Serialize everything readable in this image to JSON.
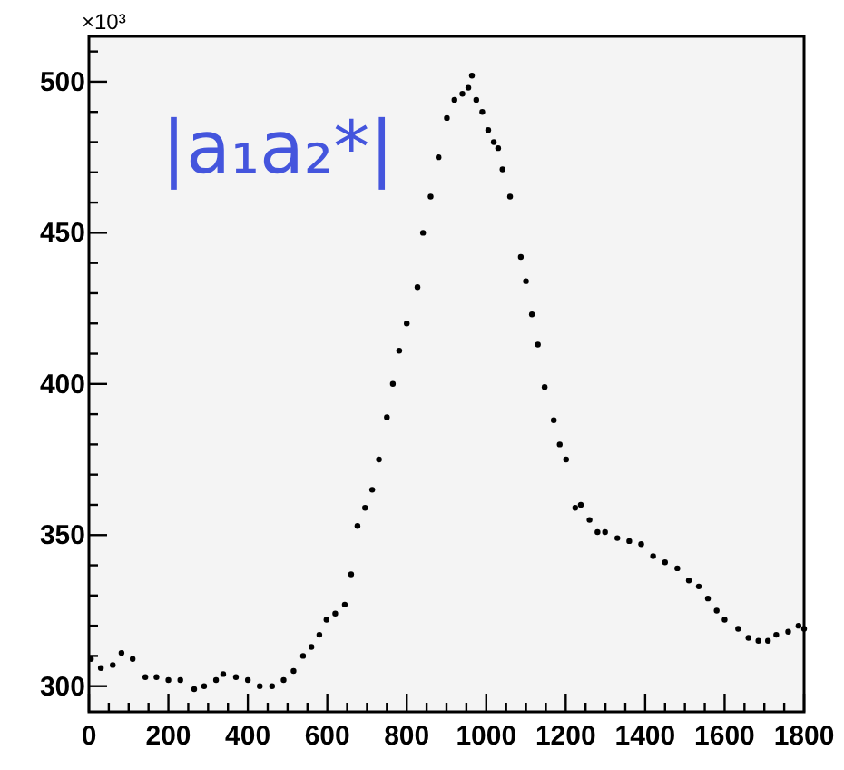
{
  "chart_data": {
    "type": "scatter",
    "marker": "circle",
    "grid": false,
    "annotations": [
      "|a₁a₂*|",
      "×10³"
    ],
    "xlim": [
      0,
      1800
    ],
    "xticks": [
      0,
      {
        "value": 50,
        "label": null
      },
      {
        "value": 100,
        "label": null
      },
      {
        "value": 150,
        "label": null
      },
      200,
      {
        "value": 250,
        "label": null
      },
      {
        "value": 300,
        "label": null
      },
      {
        "value": 350,
        "label": null
      },
      400,
      {
        "value": 450,
        "label": null
      },
      {
        "value": 500,
        "label": null
      },
      {
        "value": 550,
        "label": null
      },
      600,
      {
        "value": 650,
        "label": null
      },
      {
        "value": 700,
        "label": null
      },
      {
        "value": 750,
        "label": null
      },
      800,
      {
        "value": 850,
        "label": null
      },
      {
        "value": 900,
        "label": null
      },
      {
        "value": 950,
        "label": null
      },
      1000,
      {
        "value": 1050,
        "label": null
      },
      {
        "value": 1100,
        "label": null
      },
      {
        "value": 1150,
        "label": null
      },
      1200,
      {
        "value": 1250,
        "label": null
      },
      {
        "value": 1300,
        "label": null
      },
      {
        "value": 1350,
        "label": null
      },
      1400,
      {
        "value": 1450,
        "label": null
      },
      {
        "value": 1500,
        "label": null
      },
      {
        "value": 1550,
        "label": null
      },
      1600,
      {
        "value": 1650,
        "label": null
      },
      {
        "value": 1700,
        "label": null
      },
      {
        "value": 1750,
        "label": null
      },
      1800
    ],
    "ylim": [
      291.5,
      515
    ],
    "yticks": [
      300,
      {
        "value": 310,
        "label": null
      },
      {
        "value": 320,
        "label": null
      },
      {
        "value": 330,
        "label": null
      },
      {
        "value": 340,
        "label": null
      },
      350,
      {
        "value": 360,
        "label": null
      },
      {
        "value": 370,
        "label": null
      },
      {
        "value": 380,
        "label": null
      },
      {
        "value": 390,
        "label": null
      },
      400,
      {
        "value": 410,
        "label": null
      },
      {
        "value": 420,
        "label": null
      },
      {
        "value": 430,
        "label": null
      },
      {
        "value": 440,
        "label": null
      },
      450,
      {
        "value": 460,
        "label": null
      },
      {
        "value": 470,
        "label": null
      },
      {
        "value": 480,
        "label": null
      },
      {
        "value": 490,
        "label": null
      },
      500,
      {
        "value": 510,
        "label": null
      }
    ],
    "series": [
      {
        "color": "#000000",
        "x": [
          5,
          30,
          60,
          82,
          110,
          142,
          170,
          200,
          230,
          265,
          290,
          320,
          338,
          370,
          400,
          430,
          461,
          490,
          515,
          539,
          560,
          580,
          598,
          620,
          644,
          660,
          676,
          695,
          713,
          730,
          750,
          765,
          781,
          800,
          827,
          841,
          860,
          880,
          901,
          920,
          940,
          955,
          964,
          975,
          990,
          1005,
          1019,
          1030,
          1041,
          1060,
          1087,
          1100,
          1115,
          1130,
          1147,
          1170,
          1185,
          1201,
          1224,
          1238,
          1260,
          1280,
          1299,
          1330,
          1360,
          1390,
          1420,
          1450,
          1481,
          1510,
          1535,
          1558,
          1580,
          1600,
          1634,
          1660,
          1685,
          1709,
          1730,
          1760,
          1786,
          1800
        ],
        "values": [
          309,
          306,
          307,
          311,
          309,
          303,
          303,
          302,
          302,
          299,
          300,
          302,
          304,
          303,
          302,
          300,
          300,
          302,
          305,
          310,
          313,
          317,
          322,
          324,
          327,
          337,
          353,
          359,
          365,
          375,
          389,
          400,
          411,
          420,
          432,
          450,
          462,
          475,
          488,
          494,
          496,
          498,
          502,
          494,
          490,
          484,
          480,
          478,
          471,
          462,
          442,
          434,
          423,
          413,
          399,
          388,
          380,
          375,
          359,
          360,
          355,
          351,
          351,
          349,
          348,
          347,
          343,
          341,
          339,
          335,
          333,
          329,
          325,
          322,
          319,
          316,
          315,
          315,
          317,
          318,
          320,
          319
        ]
      }
    ]
  }
}
